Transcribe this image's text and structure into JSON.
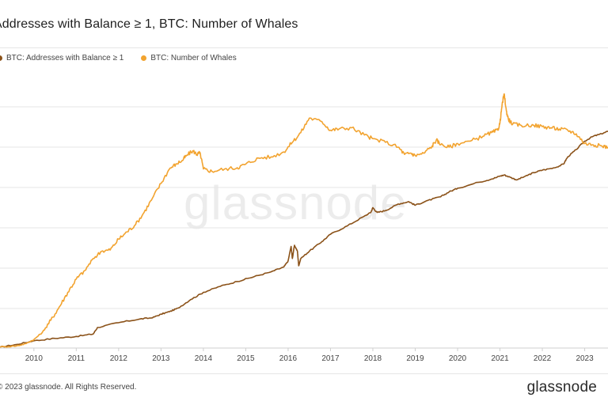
{
  "title": "Addresses with Balance ≥ 1, BTC: Number of Whales",
  "footer": "© 2023 glassnode. All Rights Reserved.",
  "brand": "glassnode",
  "watermark": "glassnode",
  "colors": {
    "addresses": "#8B5219",
    "whales": "#F2A32F",
    "grid": "#e6e6e6",
    "axis_text": "#444444"
  },
  "chart_data": {
    "type": "line",
    "title": "Addresses with Balance ≥ 1, BTC: Number of Whales",
    "xlabel": "",
    "ylabel": "",
    "x_ticks": [
      "2010",
      "2011",
      "2012",
      "2013",
      "2014",
      "2015",
      "2016",
      "2017",
      "2018",
      "2019",
      "2020",
      "2021",
      "2022",
      "2023"
    ],
    "xlim": [
      2009.2,
      2023.55
    ],
    "ylim": [
      0,
      100
    ],
    "grid": true,
    "y_axis_labels_visible": false,
    "legend_position": "top-left",
    "series": [
      {
        "name": "BTC: Addresses with Balance ≥ 1",
        "color": "#8B5219",
        "x": [
          2009.2,
          2009.6,
          2010.0,
          2010.5,
          2011.0,
          2011.4,
          2011.5,
          2012.0,
          2012.5,
          2012.8,
          2013.0,
          2013.2,
          2013.4,
          2013.7,
          2014.0,
          2014.4,
          2014.8,
          2015.2,
          2015.6,
          2015.9,
          2016.0,
          2016.07,
          2016.1,
          2016.15,
          2016.22,
          2016.25,
          2016.3,
          2016.5,
          2016.8,
          2017.0,
          2017.4,
          2017.8,
          2017.95,
          2018.0,
          2018.1,
          2018.3,
          2018.6,
          2018.85,
          2019.0,
          2019.3,
          2019.6,
          2019.8,
          2020.0,
          2020.5,
          2020.8,
          2021.0,
          2021.1,
          2021.25,
          2021.4,
          2021.6,
          2021.8,
          2022.0,
          2022.3,
          2022.5,
          2022.6,
          2022.8,
          2023.0,
          2023.2,
          2023.4,
          2023.55
        ],
        "values": [
          0.4,
          1.5,
          3.0,
          4.0,
          4.8,
          5.8,
          8.5,
          10.5,
          12.0,
          12.5,
          14.0,
          15.0,
          16.5,
          20.0,
          23.0,
          25.5,
          27.5,
          29.5,
          31.5,
          33.5,
          36.0,
          42.0,
          37.0,
          42.5,
          40.0,
          34.0,
          37.0,
          40.0,
          44.0,
          47.0,
          50.5,
          54.5,
          56.0,
          58.0,
          56.0,
          56.8,
          59.5,
          60.5,
          59.0,
          61.0,
          62.5,
          64.5,
          66.0,
          68.5,
          69.8,
          71.0,
          71.5,
          70.5,
          69.5,
          71.0,
          72.5,
          73.5,
          74.5,
          76.0,
          79.0,
          82.0,
          85.5,
          87.5,
          88.5,
          89.5
        ]
      },
      {
        "name": "BTC: Number of Whales",
        "color": "#F2A32F",
        "x": [
          2009.2,
          2009.6,
          2009.8,
          2010.0,
          2010.2,
          2010.4,
          2010.6,
          2010.8,
          2011.0,
          2011.2,
          2011.4,
          2011.6,
          2011.8,
          2012.0,
          2012.2,
          2012.4,
          2012.6,
          2012.8,
          2013.0,
          2013.2,
          2013.35,
          2013.5,
          2013.6,
          2013.75,
          2013.85,
          2013.92,
          2014.0,
          2014.2,
          2014.5,
          2014.8,
          2015.0,
          2015.3,
          2015.6,
          2015.9,
          2016.1,
          2016.3,
          2016.5,
          2016.8,
          2017.0,
          2017.2,
          2017.5,
          2017.8,
          2018.0,
          2018.3,
          2018.6,
          2018.75,
          2018.9,
          2019.0,
          2019.2,
          2019.4,
          2019.5,
          2019.6,
          2019.8,
          2020.0,
          2020.3,
          2020.6,
          2020.8,
          2020.95,
          2021.0,
          2021.05,
          2021.1,
          2021.15,
          2021.2,
          2021.3,
          2021.5,
          2021.8,
          2022.0,
          2022.2,
          2022.4,
          2022.6,
          2022.8,
          2023.0,
          2023.2,
          2023.4,
          2023.55
        ],
        "values": [
          0.4,
          0.9,
          1.8,
          3.5,
          6.5,
          11.5,
          17.0,
          23.0,
          28.5,
          32.0,
          37.0,
          40.0,
          40.5,
          45.0,
          48.0,
          51.0,
          56.0,
          62.0,
          68.0,
          74.0,
          76.0,
          77.5,
          79.5,
          81.5,
          80.0,
          80.8,
          74.0,
          73.0,
          74.0,
          74.5,
          76.0,
          78.5,
          79.0,
          81.0,
          85.0,
          89.0,
          95.0,
          93.5,
          90.0,
          90.5,
          91.0,
          88.0,
          86.5,
          85.0,
          83.0,
          80.0,
          80.5,
          79.5,
          80.5,
          83.5,
          86.0,
          84.0,
          83.0,
          84.5,
          85.5,
          87.5,
          89.0,
          90.0,
          93.0,
          100.5,
          105.0,
          98.0,
          94.5,
          92.5,
          92.0,
          92.0,
          91.5,
          91.0,
          90.5,
          90.0,
          88.5,
          84.5,
          84.0,
          83.5,
          83.0
        ]
      }
    ]
  }
}
